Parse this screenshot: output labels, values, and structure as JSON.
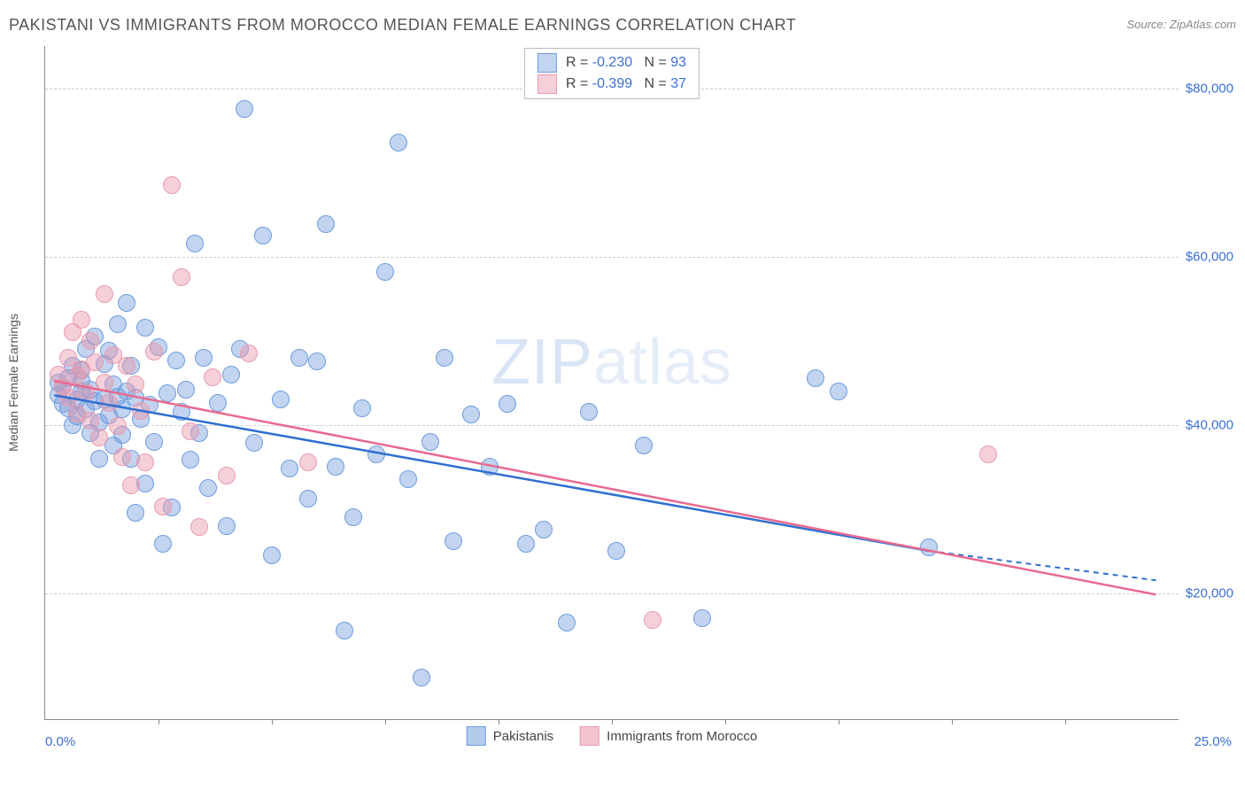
{
  "header": {
    "title": "PAKISTANI VS IMMIGRANTS FROM MOROCCO MEDIAN FEMALE EARNINGS CORRELATION CHART",
    "source": "Source: ZipAtlas.com"
  },
  "watermark": "ZIPatlas",
  "chart": {
    "type": "scatter",
    "ylabel": "Median Female Earnings",
    "xlim": [
      0,
      25
    ],
    "ylim": [
      5000,
      85000
    ],
    "xaxis_min_label": "0.0%",
    "xaxis_max_label": "25.0%",
    "xtick_positions_pct": [
      10,
      20,
      30,
      40,
      50,
      60,
      70,
      80,
      90
    ],
    "yticks": [
      {
        "value": 20000,
        "label": "$20,000"
      },
      {
        "value": 40000,
        "label": "$40,000"
      },
      {
        "value": 60000,
        "label": "$60,000"
      },
      {
        "value": 80000,
        "label": "$80,000"
      }
    ],
    "background_color": "#ffffff",
    "grid_color": "#cccccc",
    "axis_color": "#888888",
    "tick_label_color": "#3b6fd6",
    "title_fontsize": 18,
    "label_fontsize": 14,
    "point_radius": 10,
    "series": [
      {
        "name": "Pakistanis",
        "fill_color": "rgba(120,160,220,0.45)",
        "stroke_color": "#6f9de0",
        "line_color": "#2f6fd0",
        "R": "-0.230",
        "N": "93",
        "trend": {
          "x1": 0.2,
          "y1": 43500,
          "x2": 19.5,
          "y2": 25000,
          "ext_x": 24.5,
          "ext_y": 21500
        },
        "points": [
          [
            0.3,
            45000
          ],
          [
            0.3,
            43500
          ],
          [
            0.4,
            42500
          ],
          [
            0.4,
            44500
          ],
          [
            0.5,
            45500
          ],
          [
            0.5,
            42000
          ],
          [
            0.6,
            40000
          ],
          [
            0.6,
            47000
          ],
          [
            0.7,
            43000
          ],
          [
            0.7,
            41000
          ],
          [
            0.8,
            44000
          ],
          [
            0.8,
            45200
          ],
          [
            0.8,
            46500
          ],
          [
            0.9,
            41800
          ],
          [
            0.9,
            49000
          ],
          [
            1.0,
            44200
          ],
          [
            1.0,
            39000
          ],
          [
            1.1,
            42800
          ],
          [
            1.1,
            50500
          ],
          [
            1.2,
            40300
          ],
          [
            1.2,
            36000
          ],
          [
            1.3,
            47200
          ],
          [
            1.3,
            43000
          ],
          [
            1.4,
            41100
          ],
          [
            1.4,
            48800
          ],
          [
            1.5,
            37500
          ],
          [
            1.5,
            44800
          ],
          [
            1.6,
            43300
          ],
          [
            1.6,
            52000
          ],
          [
            1.7,
            38800
          ],
          [
            1.7,
            41800
          ],
          [
            1.8,
            44000
          ],
          [
            1.8,
            54500
          ],
          [
            1.9,
            36000
          ],
          [
            1.9,
            47000
          ],
          [
            2.0,
            43200
          ],
          [
            2.0,
            29500
          ],
          [
            2.1,
            40700
          ],
          [
            2.2,
            51500
          ],
          [
            2.2,
            33000
          ],
          [
            2.3,
            42400
          ],
          [
            2.4,
            38000
          ],
          [
            2.5,
            49200
          ],
          [
            2.6,
            25800
          ],
          [
            2.7,
            43700
          ],
          [
            2.8,
            30200
          ],
          [
            2.9,
            47600
          ],
          [
            3.0,
            41500
          ],
          [
            3.1,
            44200
          ],
          [
            3.2,
            35800
          ],
          [
            3.3,
            61500
          ],
          [
            3.4,
            39000
          ],
          [
            3.5,
            48000
          ],
          [
            3.6,
            32500
          ],
          [
            3.8,
            42600
          ],
          [
            4.0,
            28000
          ],
          [
            4.1,
            46000
          ],
          [
            4.3,
            49000
          ],
          [
            4.4,
            77500
          ],
          [
            4.6,
            37800
          ],
          [
            4.8,
            62500
          ],
          [
            5.0,
            24500
          ],
          [
            5.2,
            43000
          ],
          [
            5.4,
            34800
          ],
          [
            5.6,
            48000
          ],
          [
            5.8,
            31200
          ],
          [
            6.0,
            47500
          ],
          [
            6.2,
            63800
          ],
          [
            6.4,
            35000
          ],
          [
            6.6,
            15500
          ],
          [
            6.8,
            29000
          ],
          [
            7.0,
            42000
          ],
          [
            7.3,
            36500
          ],
          [
            7.5,
            58200
          ],
          [
            7.8,
            73500
          ],
          [
            8.0,
            33500
          ],
          [
            8.3,
            10000
          ],
          [
            8.5,
            38000
          ],
          [
            8.8,
            48000
          ],
          [
            9.0,
            26200
          ],
          [
            9.4,
            41200
          ],
          [
            9.8,
            35000
          ],
          [
            10.2,
            42500
          ],
          [
            10.6,
            25800
          ],
          [
            11.0,
            27500
          ],
          [
            11.5,
            16500
          ],
          [
            12.0,
            41500
          ],
          [
            12.6,
            25000
          ],
          [
            13.2,
            37500
          ],
          [
            14.5,
            17000
          ],
          [
            17.0,
            45500
          ],
          [
            17.5,
            43900
          ],
          [
            19.5,
            25400
          ]
        ]
      },
      {
        "name": "Immigrants from Morocco",
        "fill_color": "rgba(235,150,170,0.45)",
        "stroke_color": "#e89bb0",
        "line_color": "#e86a8e",
        "R": "-0.399",
        "N": "37",
        "trend": {
          "x1": 0.2,
          "y1": 45200,
          "x2": 24.5,
          "y2": 19800
        },
        "points": [
          [
            0.3,
            46000
          ],
          [
            0.4,
            44500
          ],
          [
            0.5,
            48000
          ],
          [
            0.5,
            43200
          ],
          [
            0.6,
            51000
          ],
          [
            0.7,
            45800
          ],
          [
            0.7,
            41300
          ],
          [
            0.8,
            52500
          ],
          [
            0.8,
            46600
          ],
          [
            0.9,
            43800
          ],
          [
            1.0,
            50000
          ],
          [
            1.0,
            40500
          ],
          [
            1.1,
            47400
          ],
          [
            1.2,
            38500
          ],
          [
            1.3,
            45000
          ],
          [
            1.3,
            55500
          ],
          [
            1.4,
            42600
          ],
          [
            1.5,
            48300
          ],
          [
            1.6,
            39800
          ],
          [
            1.7,
            36200
          ],
          [
            1.8,
            47000
          ],
          [
            1.9,
            32800
          ],
          [
            2.0,
            44800
          ],
          [
            2.1,
            41600
          ],
          [
            2.2,
            35500
          ],
          [
            2.4,
            48700
          ],
          [
            2.6,
            30300
          ],
          [
            2.8,
            68500
          ],
          [
            3.0,
            57500
          ],
          [
            3.2,
            39200
          ],
          [
            3.4,
            27800
          ],
          [
            3.7,
            45600
          ],
          [
            4.0,
            34000
          ],
          [
            4.5,
            48500
          ],
          [
            5.8,
            35500
          ],
          [
            13.4,
            16800
          ],
          [
            20.8,
            36500
          ]
        ]
      }
    ],
    "legend_bottom": [
      {
        "label": "Pakistanis",
        "swatch_fill": "rgba(120,160,220,0.55)",
        "swatch_border": "#6f9de0"
      },
      {
        "label": "Immigrants from Morocco",
        "swatch_fill": "rgba(235,150,170,0.55)",
        "swatch_border": "#e89bb0"
      }
    ]
  }
}
